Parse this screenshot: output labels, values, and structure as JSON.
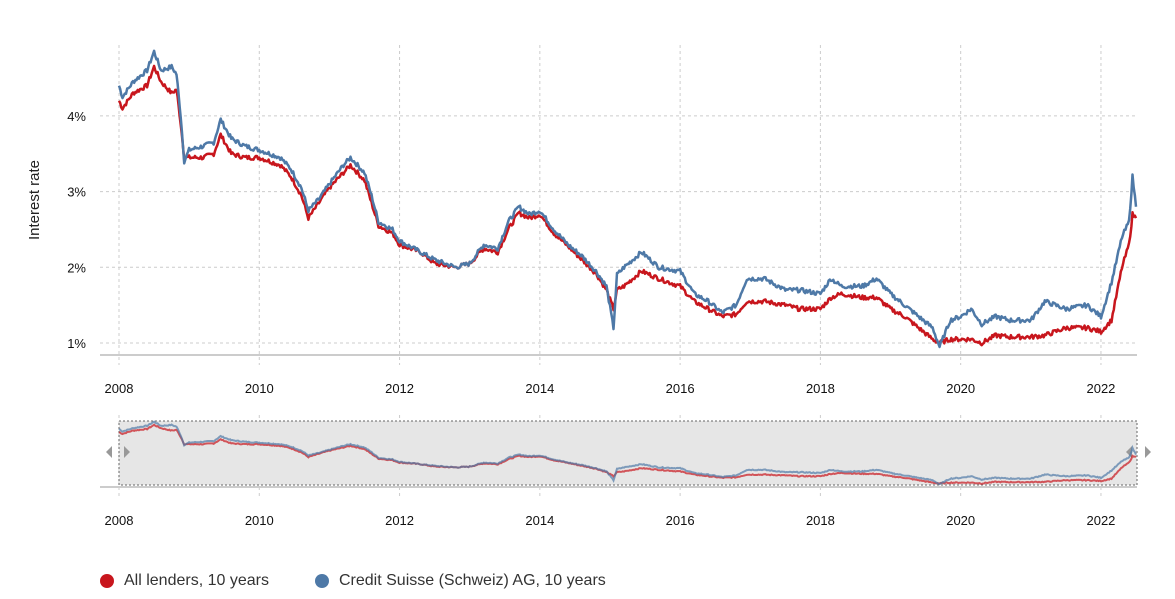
{
  "chart_data": {
    "type": "line",
    "ylabel": "Interest rate",
    "xlabel": "",
    "ylim": [
      0.85,
      4.9
    ],
    "xlim": [
      2008,
      2022.52
    ],
    "y_ticks": [
      "1%",
      "2%",
      "3%",
      "4%"
    ],
    "y_tick_values": [
      1,
      2,
      3,
      4
    ],
    "x_ticks": [
      "2008",
      "2010",
      "2012",
      "2014",
      "2016",
      "2018",
      "2020",
      "2022"
    ],
    "x_tick_values": [
      2008,
      2010,
      2012,
      2014,
      2016,
      2018,
      2020,
      2022
    ],
    "grid": true,
    "legend_placement": "bottom-left",
    "navigator": true,
    "series": [
      {
        "name": "All lenders, 10 years",
        "color": "#c8161d",
        "x": [
          2008.0,
          2008.05,
          2008.2,
          2008.4,
          2008.5,
          2008.6,
          2008.75,
          2008.82,
          2008.88,
          2008.93,
          2009.0,
          2009.2,
          2009.35,
          2009.45,
          2009.6,
          2009.8,
          2010.0,
          2010.3,
          2010.45,
          2010.6,
          2010.7,
          2010.85,
          2011.0,
          2011.2,
          2011.3,
          2011.5,
          2011.6,
          2011.7,
          2011.9,
          2012.0,
          2012.3,
          2012.5,
          2012.8,
          2013.0,
          2013.2,
          2013.4,
          2013.55,
          2013.7,
          2013.85,
          2014.0,
          2014.2,
          2014.4,
          2014.6,
          2014.8,
          2014.95,
          2015.05,
          2015.1,
          2015.2,
          2015.45,
          2015.7,
          2016.0,
          2016.2,
          2016.4,
          2016.6,
          2016.8,
          2016.95,
          2017.2,
          2017.5,
          2017.7,
          2018.0,
          2018.15,
          2018.3,
          2018.6,
          2018.8,
          2019.0,
          2019.2,
          2019.4,
          2019.6,
          2019.7,
          2019.85,
          2020.0,
          2020.15,
          2020.3,
          2020.5,
          2020.7,
          2021.0,
          2021.2,
          2021.5,
          2021.8,
          2022.0,
          2022.15,
          2022.3,
          2022.4,
          2022.45,
          2022.5
        ],
        "values": [
          4.2,
          4.1,
          4.3,
          4.4,
          4.65,
          4.45,
          4.3,
          4.35,
          3.9,
          3.45,
          3.45,
          3.45,
          3.5,
          3.75,
          3.5,
          3.45,
          3.45,
          3.35,
          3.2,
          2.95,
          2.65,
          2.85,
          3.05,
          3.25,
          3.35,
          3.15,
          2.85,
          2.55,
          2.45,
          2.3,
          2.2,
          2.05,
          2.0,
          2.05,
          2.25,
          2.2,
          2.5,
          2.72,
          2.65,
          2.7,
          2.45,
          2.28,
          2.1,
          1.92,
          1.7,
          1.45,
          1.7,
          1.75,
          1.95,
          1.85,
          1.75,
          1.55,
          1.45,
          1.35,
          1.38,
          1.55,
          1.55,
          1.5,
          1.45,
          1.45,
          1.6,
          1.65,
          1.6,
          1.6,
          1.45,
          1.35,
          1.2,
          1.05,
          1.0,
          1.05,
          1.05,
          1.05,
          1.0,
          1.1,
          1.08,
          1.08,
          1.1,
          1.2,
          1.2,
          1.15,
          1.3,
          2.0,
          2.3,
          2.7,
          2.65
        ]
      },
      {
        "name": "Credit Suisse (Schweiz) AG, 10 years",
        "color": "#4e79a7",
        "x": [
          2008.0,
          2008.05,
          2008.2,
          2008.4,
          2008.5,
          2008.6,
          2008.75,
          2008.82,
          2008.88,
          2008.93,
          2009.0,
          2009.2,
          2009.35,
          2009.45,
          2009.6,
          2009.8,
          2010.0,
          2010.3,
          2010.45,
          2010.6,
          2010.7,
          2010.85,
          2011.0,
          2011.2,
          2011.3,
          2011.5,
          2011.6,
          2011.7,
          2011.9,
          2012.0,
          2012.3,
          2012.5,
          2012.8,
          2013.0,
          2013.2,
          2013.4,
          2013.55,
          2013.7,
          2013.85,
          2014.0,
          2014.2,
          2014.4,
          2014.6,
          2014.8,
          2014.95,
          2015.05,
          2015.1,
          2015.2,
          2015.45,
          2015.7,
          2016.0,
          2016.2,
          2016.4,
          2016.6,
          2016.8,
          2016.95,
          2017.2,
          2017.5,
          2017.7,
          2018.0,
          2018.15,
          2018.3,
          2018.6,
          2018.8,
          2019.0,
          2019.2,
          2019.4,
          2019.6,
          2019.7,
          2019.85,
          2020.0,
          2020.15,
          2020.3,
          2020.5,
          2020.7,
          2021.0,
          2021.2,
          2021.5,
          2021.8,
          2022.0,
          2022.15,
          2022.3,
          2022.4,
          2022.45,
          2022.5
        ],
        "values": [
          4.4,
          4.25,
          4.45,
          4.6,
          4.85,
          4.6,
          4.65,
          4.55,
          4.0,
          3.4,
          3.55,
          3.6,
          3.65,
          3.95,
          3.7,
          3.6,
          3.55,
          3.45,
          3.3,
          3.05,
          2.75,
          2.9,
          3.1,
          3.35,
          3.45,
          3.25,
          2.95,
          2.6,
          2.5,
          2.35,
          2.2,
          2.1,
          2.0,
          2.05,
          2.3,
          2.25,
          2.6,
          2.8,
          2.7,
          2.75,
          2.5,
          2.3,
          2.15,
          1.95,
          1.75,
          1.2,
          1.9,
          2.0,
          2.2,
          2.0,
          1.95,
          1.65,
          1.55,
          1.4,
          1.5,
          1.85,
          1.85,
          1.7,
          1.7,
          1.65,
          1.85,
          1.75,
          1.75,
          1.85,
          1.65,
          1.5,
          1.35,
          1.2,
          0.95,
          1.3,
          1.35,
          1.45,
          1.25,
          1.35,
          1.3,
          1.3,
          1.55,
          1.45,
          1.5,
          1.35,
          1.8,
          2.4,
          2.6,
          3.2,
          2.8
        ]
      }
    ]
  }
}
